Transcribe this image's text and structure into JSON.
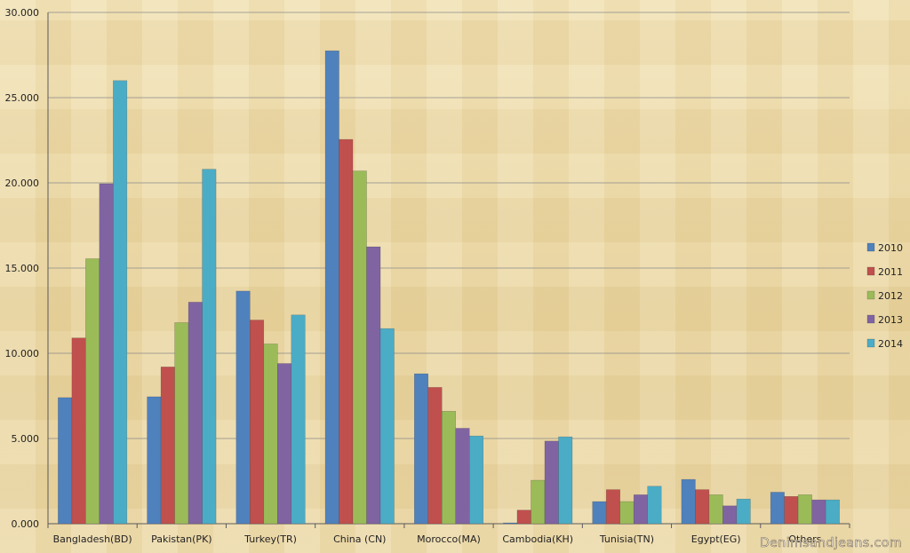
{
  "chart_data": {
    "type": "bar",
    "categories": [
      "Bangladesh(BD)",
      "Pakistan(PK)",
      "Turkey(TR)",
      "China (CN)",
      "Morocco(MA)",
      "Cambodia(KH)",
      "Tunisia(TN)",
      "Egypt(EG)",
      "Others"
    ],
    "series": [
      {
        "name": "2010",
        "color": "#4f81bd",
        "values": [
          7400,
          7450,
          13650,
          27750,
          8800,
          50,
          1300,
          2600,
          1850
        ]
      },
      {
        "name": "2011",
        "color": "#c0504d",
        "values": [
          10900,
          9200,
          11950,
          22550,
          8000,
          800,
          2000,
          2000,
          1600
        ]
      },
      {
        "name": "2012",
        "color": "#9bbb59",
        "values": [
          15550,
          11800,
          10550,
          20700,
          6600,
          2550,
          1300,
          1700,
          1700
        ]
      },
      {
        "name": "2013",
        "color": "#8064a2",
        "values": [
          19950,
          13000,
          9400,
          16250,
          5600,
          4850,
          1700,
          1050,
          1400
        ]
      },
      {
        "name": "2014",
        "color": "#4bacc6",
        "values": [
          26000,
          20800,
          12250,
          11450,
          5150,
          5100,
          2200,
          1450,
          1400
        ]
      }
    ],
    "y_ticks": [
      "0.000",
      "5.000",
      "10.000",
      "15.000",
      "20.000",
      "25.000",
      "30.000"
    ],
    "ylim": [
      0,
      30000
    ],
    "grid": true,
    "legend_position": "right"
  },
  "watermark": "Denimsandjeans.com"
}
